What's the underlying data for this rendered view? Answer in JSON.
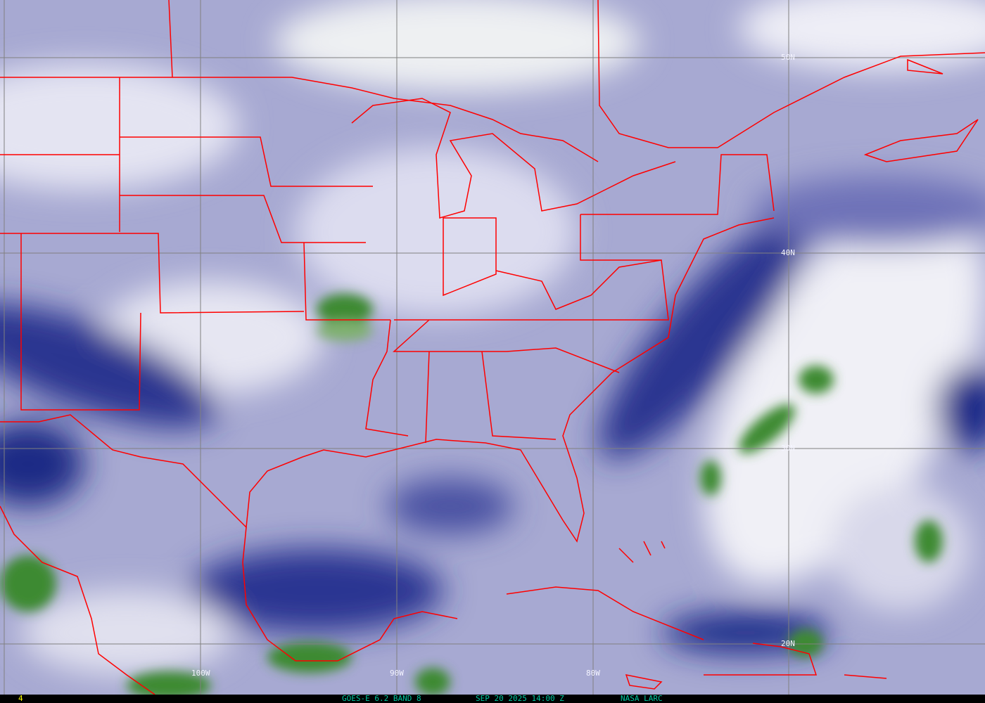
{
  "footer": {
    "frame_number": "4",
    "satellite_band": "GOES-E 6.2 BAND 8",
    "timestamp": "SEP 20 2025 14:00 Z",
    "credit": "NASA LARC"
  },
  "grid": {
    "latitude_labels": [
      "50N",
      "40N",
      "30N",
      "20N"
    ],
    "longitude_labels": [
      "100W",
      "90W",
      "80W"
    ]
  },
  "colors": {
    "borders": "#ff0000",
    "gridlines": "#808080",
    "footer_cyan": "#00c8a0",
    "footer_yellow": "#ffff00",
    "dry_air": "#1c2a8a",
    "moist_air": "#ffffff",
    "cloud_tops": "#3d8a30"
  }
}
